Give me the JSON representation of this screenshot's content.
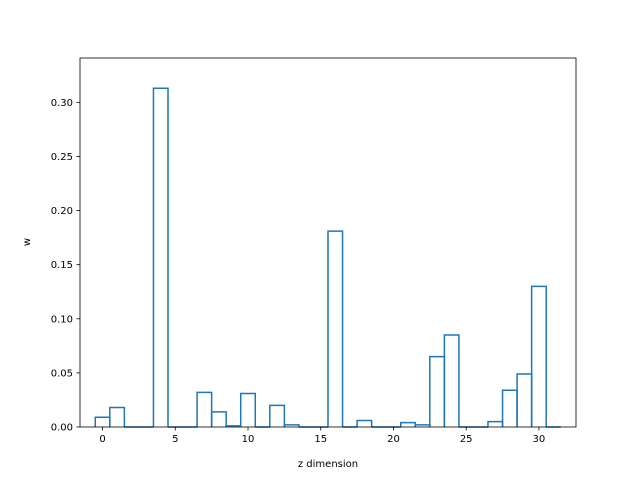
{
  "chart_data": {
    "type": "bar",
    "style": "step-histogram",
    "title": "",
    "xlabel": "z dimension",
    "ylabel": "w",
    "xlim": [
      -1.55,
      32.55
    ],
    "ylim": [
      0,
      0.341
    ],
    "xticks": [
      0,
      5,
      10,
      15,
      20,
      25,
      30
    ],
    "yticks": [
      0.0,
      0.05,
      0.1,
      0.15,
      0.2,
      0.25,
      0.3
    ],
    "ytick_labels": [
      "0.00",
      "0.05",
      "0.10",
      "0.15",
      "0.20",
      "0.25",
      "0.30"
    ],
    "grid": false,
    "line_color": "#1f77b4",
    "categories": [
      0,
      1,
      2,
      3,
      4,
      5,
      6,
      7,
      8,
      9,
      10,
      11,
      12,
      13,
      14,
      15,
      16,
      17,
      18,
      19,
      20,
      21,
      22,
      23,
      24,
      25,
      26,
      27,
      28,
      29,
      30,
      31
    ],
    "values": [
      0.009,
      0.018,
      0.0,
      0.0,
      0.313,
      0.0,
      0.0,
      0.032,
      0.014,
      0.001,
      0.031,
      0.0,
      0.02,
      0.002,
      0.0,
      0.0,
      0.181,
      0.0,
      0.006,
      0.0,
      0.0,
      0.004,
      0.002,
      0.065,
      0.085,
      0.0,
      0.0,
      0.005,
      0.034,
      0.049,
      0.13,
      0.0
    ]
  }
}
